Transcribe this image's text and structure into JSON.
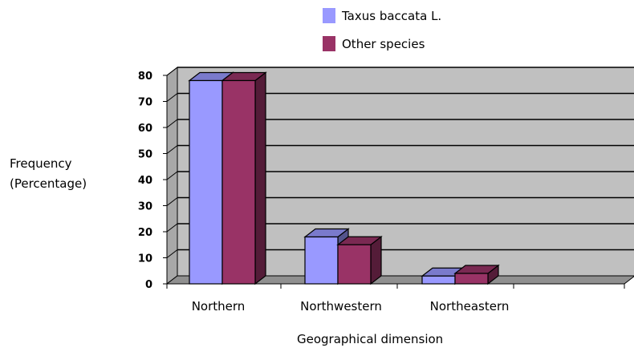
{
  "chart_data": {
    "type": "bar",
    "title": "",
    "xlabel": "Geographical dimension",
    "ylabel": [
      "Frequency",
      "(Percentage)"
    ],
    "categories": [
      "Northern",
      "Northwestern",
      "Northeastern"
    ],
    "series": [
      {
        "name": "Taxus baccata L.",
        "values": [
          78,
          18,
          3
        ],
        "color": "#9999ff"
      },
      {
        "name": "Other species",
        "values": [
          78,
          15,
          4
        ],
        "color": "#993366"
      }
    ],
    "ylim": [
      0,
      80
    ],
    "yticks": [
      0,
      10,
      20,
      30,
      40,
      50,
      60,
      70,
      80
    ],
    "grid": true,
    "style": "3d-clustered-column",
    "wall_color": "#c0c0c0",
    "legend_position": "top"
  }
}
